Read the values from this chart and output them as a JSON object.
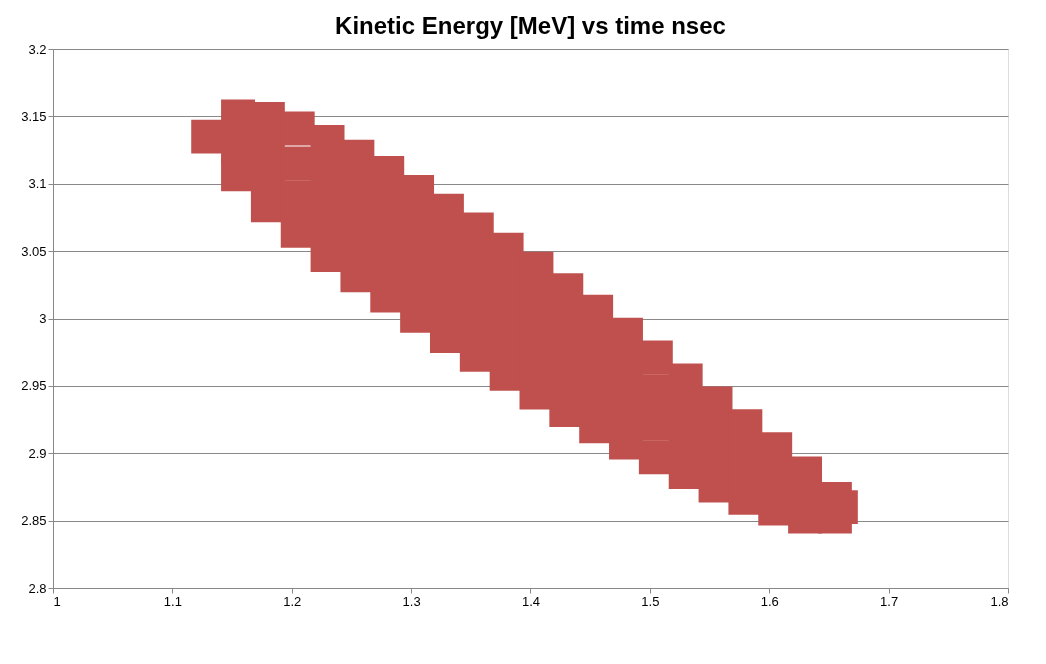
{
  "chart_data": {
    "type": "scatter",
    "title": "Kinetic Energy [MeV] vs time nsec",
    "xlim": [
      1,
      1.8
    ],
    "xticks": [
      1,
      1.1,
      1.2,
      1.3,
      1.4,
      1.5,
      1.6,
      1.7,
      1.8
    ],
    "ylim": [
      2.8,
      3.2
    ],
    "yticks": [
      2.8,
      2.85,
      2.9,
      2.95,
      3,
      3.05,
      3.1,
      3.15,
      3.2
    ],
    "grid": "y",
    "marker": "square",
    "legend": false,
    "series": [
      {
        "color": "#c0504d",
        "x": [
          1.13,
          1.155,
          1.155,
          1.155,
          1.18,
          1.18,
          1.18,
          1.18,
          1.205,
          1.205,
          1.205,
          1.205,
          1.23,
          1.23,
          1.23,
          1.23,
          1.23,
          1.255,
          1.255,
          1.255,
          1.255,
          1.255,
          1.28,
          1.28,
          1.28,
          1.28,
          1.28,
          1.305,
          1.305,
          1.305,
          1.305,
          1.305,
          1.33,
          1.33,
          1.33,
          1.33,
          1.33,
          1.355,
          1.355,
          1.355,
          1.355,
          1.355,
          1.38,
          1.38,
          1.38,
          1.38,
          1.38,
          1.405,
          1.405,
          1.405,
          1.405,
          1.405,
          1.43,
          1.43,
          1.43,
          1.43,
          1.43,
          1.455,
          1.455,
          1.455,
          1.455,
          1.455,
          1.48,
          1.48,
          1.48,
          1.48,
          1.48,
          1.505,
          1.505,
          1.505,
          1.505,
          1.53,
          1.53,
          1.53,
          1.53,
          1.555,
          1.555,
          1.555,
          1.555,
          1.58,
          1.58,
          1.58,
          1.58,
          1.605,
          1.605,
          1.605,
          1.63,
          1.63,
          1.63,
          1.655,
          1.655,
          1.66
        ],
        "values": [
          3.135,
          3.107,
          3.128,
          3.15,
          3.084,
          3.108,
          3.13,
          3.148,
          3.065,
          3.09,
          3.115,
          3.141,
          3.047,
          3.068,
          3.089,
          3.11,
          3.131,
          3.032,
          3.054,
          3.076,
          3.098,
          3.12,
          3.017,
          3.04,
          3.063,
          3.085,
          3.108,
          3.002,
          3.025,
          3.048,
          3.071,
          3.094,
          2.987,
          3.01,
          3.034,
          3.057,
          3.08,
          2.973,
          2.996,
          3.02,
          3.043,
          3.066,
          2.959,
          2.982,
          3.005,
          3.028,
          3.051,
          2.945,
          2.968,
          2.991,
          3.014,
          3.037,
          2.932,
          2.954,
          2.977,
          2.999,
          3.021,
          2.92,
          2.941,
          2.963,
          2.984,
          3.005,
          2.908,
          2.928,
          2.948,
          2.968,
          2.988,
          2.897,
          2.922,
          2.946,
          2.971,
          2.886,
          2.909,
          2.931,
          2.954,
          2.876,
          2.896,
          2.917,
          2.937,
          2.867,
          2.885,
          2.902,
          2.92,
          2.859,
          2.881,
          2.903,
          2.853,
          2.869,
          2.885,
          2.853,
          2.866,
          2.86
        ]
      }
    ]
  }
}
